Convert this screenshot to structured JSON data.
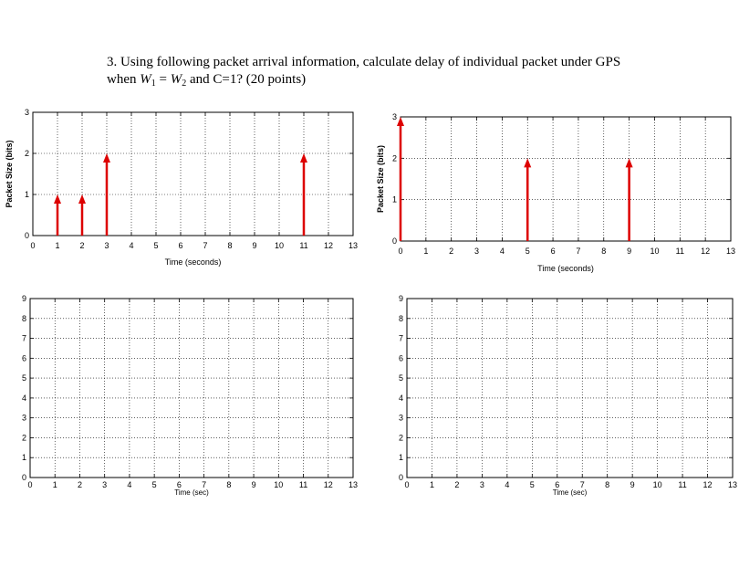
{
  "question": {
    "number": "3.",
    "line1": "Using following packet arrival information, calculate delay of individual packet under GPS",
    "when": "when",
    "w_symbol": "W",
    "w1_sub": "1",
    "equals": " = ",
    "w2_sub": "2",
    "rest": " and C=1? (20 points)"
  },
  "colors": {
    "arrow": "#dd0000",
    "axis": "#000000",
    "grid": "#000000"
  },
  "chart_data": [
    {
      "type": "bar",
      "style": "stem-arrows",
      "xlabel": "Time (seconds)",
      "ylabel": "Packet Size (bits)",
      "xlim": [
        0,
        13
      ],
      "ylim": [
        0,
        3
      ],
      "x_ticks": [
        "0",
        "1",
        "2",
        "3",
        "4",
        "5",
        "6",
        "7",
        "8",
        "9",
        "10",
        "11",
        "12",
        "13"
      ],
      "y_ticks": [
        "0",
        "1",
        "2",
        "3"
      ],
      "grid": true,
      "x": [
        1,
        2,
        3,
        11
      ],
      "values": [
        1,
        1,
        2,
        2
      ]
    },
    {
      "type": "bar",
      "style": "stem-arrows",
      "xlabel": "Time (seconds)",
      "ylabel": "Packet Size (bits)",
      "xlim": [
        0,
        13
      ],
      "ylim": [
        0,
        3
      ],
      "x_ticks": [
        "0",
        "1",
        "2",
        "3",
        "4",
        "5",
        "6",
        "7",
        "8",
        "9",
        "10",
        "11",
        "12",
        "13"
      ],
      "y_ticks": [
        "0",
        "1",
        "2",
        "3"
      ],
      "grid": true,
      "x": [
        0,
        5,
        9
      ],
      "values": [
        3,
        2,
        2
      ]
    },
    {
      "type": "line",
      "xlabel": "Time (sec)",
      "ylabel": "",
      "xlim": [
        0,
        13
      ],
      "ylim": [
        0,
        9
      ],
      "x_ticks": [
        "0",
        "1",
        "2",
        "3",
        "4",
        "5",
        "6",
        "7",
        "8",
        "9",
        "10",
        "11",
        "12",
        "13"
      ],
      "y_ticks": [
        "0",
        "1",
        "2",
        "3",
        "4",
        "5",
        "6",
        "7",
        "8",
        "9"
      ],
      "grid": true,
      "x": [],
      "values": []
    },
    {
      "type": "line",
      "xlabel": "Time (sec)",
      "ylabel": "",
      "xlim": [
        0,
        13
      ],
      "ylim": [
        0,
        9
      ],
      "x_ticks": [
        "0",
        "1",
        "2",
        "3",
        "4",
        "5",
        "6",
        "7",
        "8",
        "9",
        "10",
        "11",
        "12",
        "13"
      ],
      "y_ticks": [
        "0",
        "1",
        "2",
        "3",
        "4",
        "5",
        "6",
        "7",
        "8",
        "9"
      ],
      "grid": true,
      "x": [],
      "values": []
    }
  ]
}
